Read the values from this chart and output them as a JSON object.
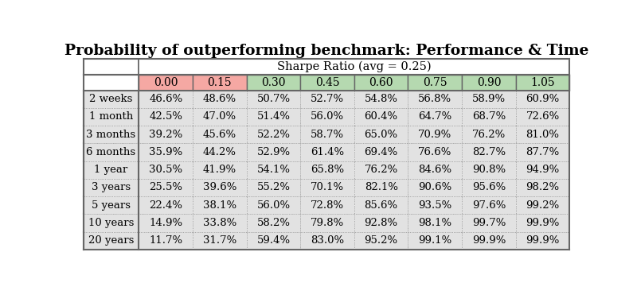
{
  "title": "Probability of outperforming benchmark: Performance & Time",
  "subtitle": "Sharpe Ratio (avg = 0.25)",
  "row_labels": [
    "2 weeks",
    "1 month",
    "3 months",
    "6 months",
    "1 year",
    "3 years",
    "5 years",
    "10 years",
    "20 years"
  ],
  "col_labels": [
    "0.00",
    "0.15",
    "0.30",
    "0.45",
    "0.60",
    "0.75",
    "0.90",
    "1.05"
  ],
  "values": [
    [
      "46.6%",
      "48.6%",
      "50.7%",
      "52.7%",
      "54.8%",
      "56.8%",
      "58.9%",
      "60.9%"
    ],
    [
      "42.5%",
      "47.0%",
      "51.4%",
      "56.0%",
      "60.4%",
      "64.7%",
      "68.7%",
      "72.6%"
    ],
    [
      "39.2%",
      "45.6%",
      "52.2%",
      "58.7%",
      "65.0%",
      "70.9%",
      "76.2%",
      "81.0%"
    ],
    [
      "35.9%",
      "44.2%",
      "52.9%",
      "61.4%",
      "69.4%",
      "76.6%",
      "82.7%",
      "87.7%"
    ],
    [
      "30.5%",
      "41.9%",
      "54.1%",
      "65.8%",
      "76.2%",
      "84.6%",
      "90.8%",
      "94.9%"
    ],
    [
      "25.5%",
      "39.6%",
      "55.2%",
      "70.1%",
      "82.1%",
      "90.6%",
      "95.6%",
      "98.2%"
    ],
    [
      "22.4%",
      "38.1%",
      "56.0%",
      "72.8%",
      "85.6%",
      "93.5%",
      "97.6%",
      "99.2%"
    ],
    [
      "14.9%",
      "33.8%",
      "58.2%",
      "79.8%",
      "92.8%",
      "98.1%",
      "99.7%",
      "99.9%"
    ],
    [
      "11.7%",
      "31.7%",
      "59.4%",
      "83.0%",
      "95.2%",
      "99.1%",
      "99.9%",
      "99.9%"
    ]
  ],
  "col_header_colors": [
    "#f5a8a3",
    "#f5a8a3",
    "#b5d9b0",
    "#b5d9b0",
    "#b5d9b0",
    "#b5d9b0",
    "#b5d9b0",
    "#b5d9b0"
  ],
  "cell_bg_color": "#e2e2e2",
  "header_bg": "#ffffff",
  "border_color": "#666666",
  "inner_border_color": "#999999",
  "text_color": "#000000",
  "title_color": "#000000",
  "font_size": 9.5,
  "title_font_size": 13.5,
  "subtitle_font_size": 10.5
}
